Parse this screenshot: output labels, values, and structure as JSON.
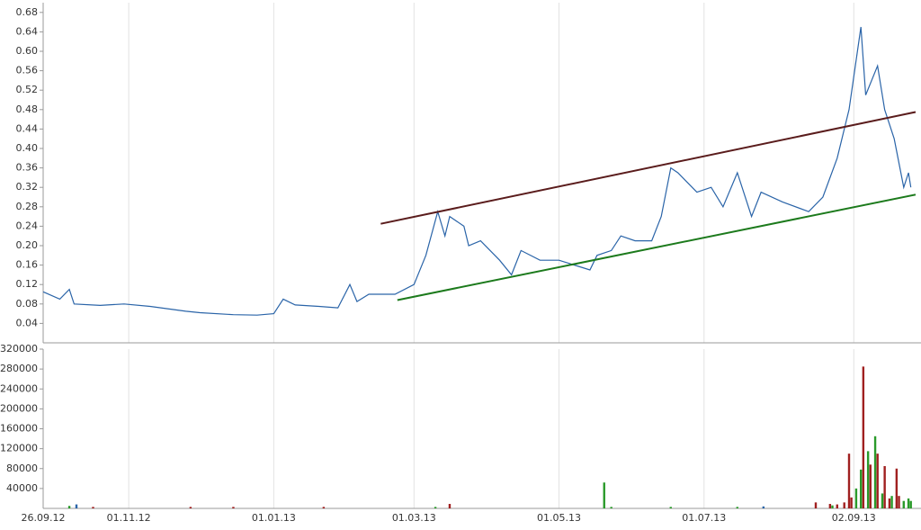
{
  "chart_data": [
    {
      "type": "line",
      "x": [
        "26.09.12",
        "03.10.12",
        "07.10.12",
        "09.10.12",
        "20.10.12",
        "30.10.12",
        "10.11.12",
        "25.11.12",
        "01.12.12",
        "15.12.12",
        "25.12.12",
        "01.01.13",
        "05.01.13",
        "10.01.13",
        "20.01.13",
        "28.01.13",
        "02.02.13",
        "05.02.13",
        "10.02.13",
        "21.02.13",
        "01.03.13",
        "06.03.13",
        "11.03.13",
        "14.03.13",
        "16.03.13",
        "22.03.13",
        "24.03.13",
        "29.03.13",
        "06.04.13",
        "11.04.13",
        "15.04.13",
        "23.04.13",
        "01.05.13",
        "14.05.13",
        "17.05.13",
        "23.05.13",
        "27.05.13",
        "02.06.13",
        "09.06.13",
        "13.06.13",
        "17.06.13",
        "20.06.13",
        "24.06.13",
        "28.06.13",
        "04.07.13",
        "09.07.13",
        "15.07.13",
        "21.07.13",
        "25.07.13",
        "03.08.13",
        "14.08.13",
        "20.08.13",
        "26.08.13",
        "31.08.13",
        "05.09.13",
        "07.09.13",
        "12.09.13",
        "15.09.13",
        "19.09.13",
        "23.09.13",
        "25.09.13",
        "26.09.13"
      ],
      "values": [
        0.105,
        0.09,
        0.11,
        0.08,
        0.077,
        0.08,
        0.075,
        0.065,
        0.062,
        0.058,
        0.057,
        0.06,
        0.09,
        0.078,
        0.075,
        0.072,
        0.12,
        0.085,
        0.1,
        0.1,
        0.12,
        0.18,
        0.27,
        0.22,
        0.26,
        0.24,
        0.2,
        0.21,
        0.17,
        0.14,
        0.19,
        0.17,
        0.17,
        0.15,
        0.18,
        0.19,
        0.22,
        0.21,
        0.21,
        0.26,
        0.36,
        0.35,
        0.33,
        0.31,
        0.32,
        0.28,
        0.35,
        0.26,
        0.31,
        0.29,
        0.27,
        0.3,
        0.38,
        0.48,
        0.65,
        0.51,
        0.57,
        0.48,
        0.42,
        0.32,
        0.35,
        0.32
      ],
      "color": "#2a64a8",
      "xlim": [
        "26.09.12",
        "28.09.13"
      ],
      "ylim": [
        0,
        0.7
      ],
      "yticks": [
        0.04,
        0.08,
        0.12,
        0.16,
        {
          "value": 0.2,
          "label": "0.20"
        },
        0.24,
        0.28,
        0.32,
        0.36,
        {
          "value": 0.4,
          "label": "0.40"
        },
        0.44,
        0.48,
        0.52,
        0.56,
        {
          "value": 0.6,
          "label": "0.60"
        },
        0.64,
        0.68
      ],
      "trend_lines": [
        {
          "x": [
            "15.02.13",
            "28.09.13"
          ],
          "values": [
            0.245,
            0.475
          ],
          "color": "#5a1c1c"
        },
        {
          "x": [
            "22.02.13",
            "28.09.13"
          ],
          "values": [
            0.088,
            0.305
          ],
          "color": "#1c7a1c"
        }
      ]
    },
    {
      "type": "bar",
      "x": [
        "07.10.12",
        "10.10.12",
        "17.10.12",
        "27.11.12",
        "15.12.12",
        "22.01.13",
        "10.03.13",
        "16.03.13",
        "20.05.13",
        "23.05.13",
        "17.06.13",
        "15.07.13",
        "26.07.13",
        "17.08.13",
        "23.08.13",
        "24.08.13",
        "26.08.13",
        "29.08.13",
        "31.08.13",
        "01.09.13",
        "03.09.13",
        "05.09.13",
        "06.09.13",
        "08.09.13",
        "09.09.13",
        "11.09.13",
        "12.09.13",
        "14.09.13",
        "15.09.13",
        "17.09.13",
        "18.09.13",
        "20.09.13",
        "21.09.13",
        "23.09.13",
        "25.09.13",
        "26.09.13"
      ],
      "values": [
        5000,
        8000,
        3000,
        3000,
        3000,
        3000,
        3000,
        9000,
        52000,
        3000,
        3000,
        3000,
        4000,
        12000,
        9000,
        6000,
        8000,
        12000,
        110000,
        22000,
        40000,
        78000,
        285000,
        115000,
        88000,
        145000,
        110000,
        30000,
        85000,
        20000,
        25000,
        80000,
        25000,
        15000,
        20000,
        15000
      ],
      "colors": [
        "#2a9a2a",
        "#2a64a8",
        "#a02020",
        "#a02020",
        "#a02020",
        "#a02020",
        "#2a9a2a",
        "#a02020",
        "#2a9a2a",
        "#2a9a2a",
        "#2a9a2a",
        "#2a9a2a",
        "#2a64a8",
        "#a02020",
        "#a02020",
        "#2a9a2a",
        "#a02020",
        "#a02020",
        "#a02020",
        "#a02020",
        "#2a9a2a",
        "#2a9a2a",
        "#a02020",
        "#2a9a2a",
        "#a02020",
        "#2a9a2a",
        "#a02020",
        "#2a9a2a",
        "#a02020",
        "#a02020",
        "#2a9a2a",
        "#a02020",
        "#a02020",
        "#2a9a2a",
        "#2a9a2a",
        "#2a9a2a"
      ],
      "xlim": [
        "26.09.12",
        "28.09.13"
      ],
      "ylim": [
        0,
        320000
      ],
      "yticks": [
        40000,
        80000,
        120000,
        160000,
        200000,
        240000,
        280000,
        320000
      ],
      "xticks": [
        "26.09.12",
        "01.11.12",
        "01.01.13",
        "01.03.13",
        "01.05.13",
        "01.07.13",
        "02.09.13"
      ]
    }
  ]
}
